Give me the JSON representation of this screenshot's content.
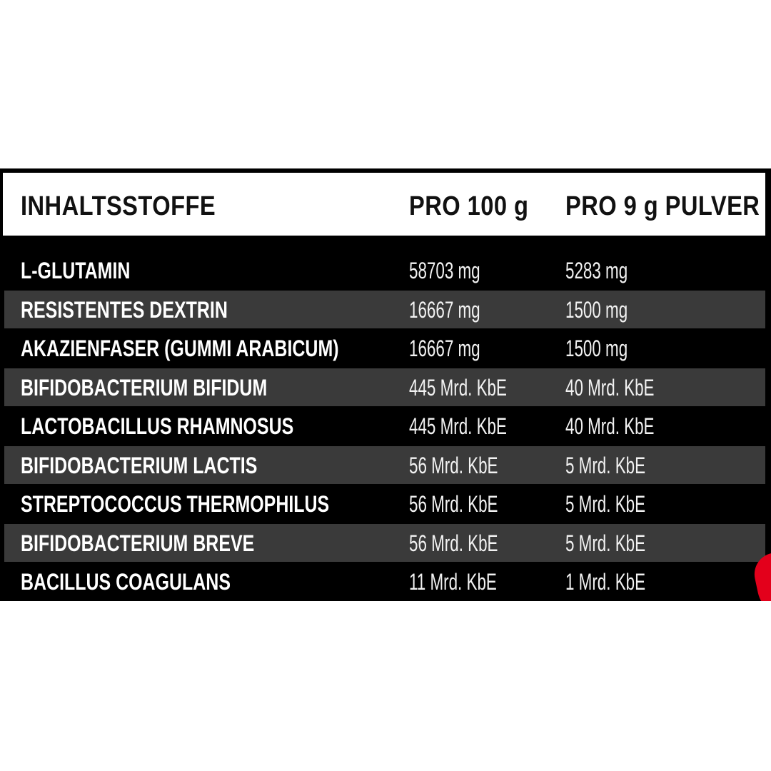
{
  "header": {
    "col1": "INHALTSSTOFFE",
    "col2": "PRO 100 g",
    "col3": "PRO 9 g PULVER"
  },
  "rows": [
    {
      "name": "L-GLUTAMIN",
      "per100": "58703 mg",
      "per9": "5283 mg"
    },
    {
      "name": "RESISTENTES DEXTRIN",
      "per100": "16667 mg",
      "per9": "1500 mg"
    },
    {
      "name": "AKAZIENFASER (GUMMI ARABICUM)",
      "per100": "16667 mg",
      "per9": "1500 mg"
    },
    {
      "name": "BIFIDOBACTERIUM BIFIDUM",
      "per100": "445 Mrd. KbE",
      "per9": "40 Mrd. KbE"
    },
    {
      "name": "LACTOBACILLUS RHAMNOSUS",
      "per100": "445 Mrd. KbE",
      "per9": "40 Mrd. KbE"
    },
    {
      "name": "BIFIDOBACTERIUM LACTIS",
      "per100": "56 Mrd. KbE",
      "per9": "5 Mrd. KbE"
    },
    {
      "name": "STREPTOCOCCUS THERMOPHILUS",
      "per100": "56 Mrd. KbE",
      "per9": "5 Mrd. KbE"
    },
    {
      "name": "BIFIDOBACTERIUM BREVE",
      "per100": "56 Mrd. KbE",
      "per9": "5 Mrd. KbE"
    },
    {
      "name": "BACILLUS COAGULANS",
      "per100": "11 Mrd. KbE",
      "per9": "1 Mrd. KbE"
    }
  ],
  "colors": {
    "panel": "#000000",
    "alt_row": "#3a3a3a",
    "header_bg": "#ffffff",
    "accent": "#e3001b"
  }
}
